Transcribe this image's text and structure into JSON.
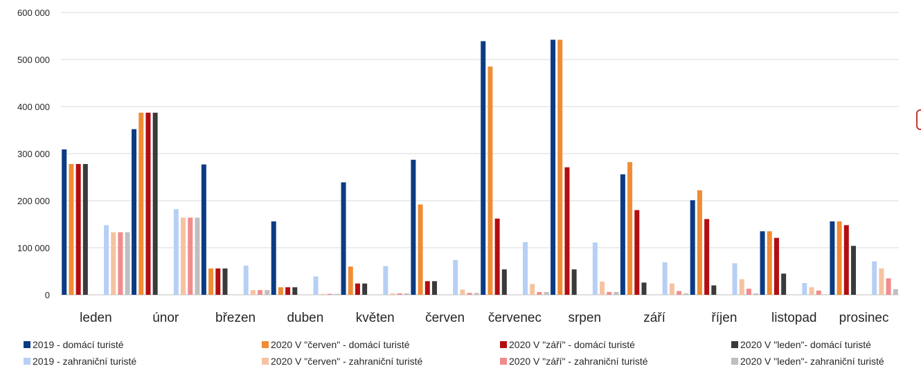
{
  "chart_data": {
    "type": "bar",
    "title": "",
    "xlabel": "",
    "ylabel": "",
    "ylim": [
      0,
      600000
    ],
    "yticks": [
      "0",
      "100 000",
      "200 000",
      "300 000",
      "400 000",
      "500 000",
      "600 000"
    ],
    "ytick_values": [
      0,
      100000,
      200000,
      300000,
      400000,
      500000,
      600000
    ],
    "grid": true,
    "legend_position": "bottom",
    "categories": [
      "leden",
      "únor",
      "březen",
      "duben",
      "květen",
      "červen",
      "červenec",
      "srpen",
      "září",
      "říjen",
      "listopad",
      "prosinec"
    ],
    "series": [
      {
        "name": "2019 - domácí turisté",
        "color": "#0b3c83",
        "values": [
          309000,
          352000,
          277000,
          156000,
          239000,
          287000,
          539000,
          542000,
          256000,
          201000,
          135000,
          156000
        ]
      },
      {
        "name": "2020 V \"červen\" - domácí turisté",
        "color": "#f08c35",
        "values": [
          278000,
          387000,
          56000,
          16000,
          60000,
          192000,
          485000,
          542000,
          282000,
          222000,
          135000,
          156000
        ]
      },
      {
        "name": "2020 V \"září\" - domácí turisté",
        "color": "#b40d11",
        "values": [
          278000,
          387000,
          56000,
          16000,
          24000,
          29000,
          162000,
          271000,
          180000,
          161000,
          121000,
          148000
        ]
      },
      {
        "name": "2020 V \"leden\"- domácí turisté",
        "color": "#3a3a3a",
        "values": [
          278000,
          387000,
          56000,
          16000,
          24000,
          29000,
          54000,
          54000,
          26000,
          20000,
          45000,
          104000
        ]
      },
      {
        "name": "2019 - zahraniční turisté",
        "color": "#b7cff5",
        "values": [
          148000,
          182000,
          62000,
          39000,
          61000,
          74000,
          112000,
          111000,
          69000,
          67000,
          25000,
          71000
        ]
      },
      {
        "name": "2020 V \"červen\" - zahraniční turisté",
        "color": "#f5c3a0",
        "values": [
          133000,
          164000,
          10000,
          2000,
          3000,
          11000,
          23000,
          28000,
          24000,
          33000,
          16000,
          56000
        ]
      },
      {
        "name": "2020 V \"září\" - zahraniční turisté",
        "color": "#f08c8c",
        "values": [
          133000,
          164000,
          10000,
          2000,
          3000,
          4000,
          6000,
          6000,
          8000,
          13000,
          9000,
          35000
        ]
      },
      {
        "name": "2020 V \"leden\"- zahraniční turisté",
        "color": "#bfbfbf",
        "values": [
          133000,
          164000,
          10000,
          2000,
          3000,
          4000,
          6000,
          6000,
          3000,
          3000,
          1000,
          12000
        ]
      }
    ]
  }
}
